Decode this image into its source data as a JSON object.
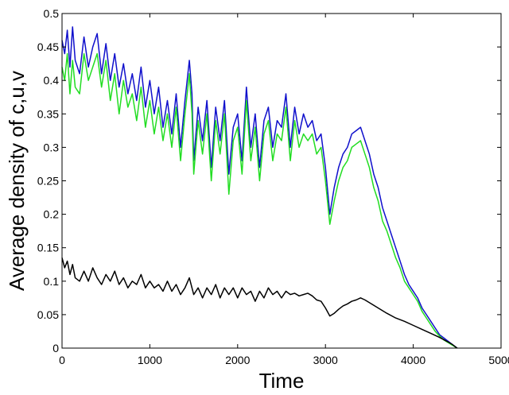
{
  "chart_data": {
    "type": "line",
    "title": "",
    "xlabel": "Time",
    "ylabel": "Average density of c,u,v",
    "xlim": [
      0,
      5000
    ],
    "ylim": [
      0,
      0.5
    ],
    "xticks": [
      0,
      1000,
      2000,
      3000,
      4000,
      5000
    ],
    "xtick_labels": [
      "0",
      "1000",
      "2000",
      "3000",
      "4000",
      "5000"
    ],
    "yticks": [
      0,
      0.05,
      0.1,
      0.15,
      0.2,
      0.25,
      0.3,
      0.35,
      0.4,
      0.45,
      0.5
    ],
    "ytick_labels": [
      "0",
      "0.05",
      "0.1",
      "0.15",
      "0.2",
      "0.25",
      "0.3",
      "0.35",
      "0.4",
      "0.45",
      "0.5"
    ],
    "grid": false,
    "legend": "none",
    "series": [
      {
        "color": "#1010cc",
        "x": [
          0,
          30,
          60,
          90,
          120,
          150,
          200,
          250,
          300,
          350,
          400,
          450,
          500,
          550,
          600,
          650,
          700,
          750,
          800,
          850,
          900,
          950,
          1000,
          1050,
          1100,
          1150,
          1200,
          1250,
          1300,
          1350,
          1400,
          1450,
          1480,
          1500,
          1550,
          1600,
          1650,
          1700,
          1750,
          1800,
          1850,
          1900,
          1950,
          2000,
          2050,
          2100,
          2150,
          2200,
          2250,
          2300,
          2350,
          2400,
          2450,
          2500,
          2550,
          2600,
          2650,
          2700,
          2750,
          2800,
          2850,
          2900,
          2950,
          3000,
          3050,
          3100,
          3150,
          3200,
          3250,
          3300,
          3350,
          3400,
          3450,
          3500,
          3550,
          3600,
          3650,
          3700,
          3750,
          3800,
          3850,
          3900,
          3950,
          4000,
          4050,
          4100,
          4150,
          4200,
          4250,
          4300,
          4350,
          4400,
          4450,
          4500
        ],
        "y": [
          0.46,
          0.44,
          0.475,
          0.42,
          0.48,
          0.43,
          0.41,
          0.465,
          0.42,
          0.45,
          0.47,
          0.41,
          0.455,
          0.4,
          0.44,
          0.39,
          0.425,
          0.38,
          0.41,
          0.37,
          0.42,
          0.36,
          0.4,
          0.35,
          0.39,
          0.33,
          0.37,
          0.32,
          0.38,
          0.3,
          0.37,
          0.43,
          0.38,
          0.28,
          0.36,
          0.31,
          0.37,
          0.27,
          0.36,
          0.31,
          0.37,
          0.26,
          0.33,
          0.35,
          0.28,
          0.39,
          0.3,
          0.35,
          0.27,
          0.34,
          0.36,
          0.3,
          0.34,
          0.33,
          0.38,
          0.3,
          0.36,
          0.32,
          0.35,
          0.33,
          0.34,
          0.31,
          0.32,
          0.27,
          0.2,
          0.24,
          0.27,
          0.29,
          0.3,
          0.32,
          0.325,
          0.33,
          0.31,
          0.29,
          0.26,
          0.24,
          0.21,
          0.19,
          0.17,
          0.15,
          0.13,
          0.11,
          0.095,
          0.085,
          0.075,
          0.06,
          0.05,
          0.04,
          0.03,
          0.02,
          0.015,
          0.01,
          0.005,
          0.0
        ]
      },
      {
        "color": "#22dd22",
        "x": [
          0,
          30,
          60,
          90,
          120,
          150,
          200,
          250,
          300,
          350,
          400,
          450,
          500,
          550,
          600,
          650,
          700,
          750,
          800,
          850,
          900,
          950,
          1000,
          1050,
          1100,
          1150,
          1200,
          1250,
          1300,
          1350,
          1400,
          1450,
          1480,
          1500,
          1550,
          1600,
          1650,
          1700,
          1750,
          1800,
          1850,
          1900,
          1950,
          2000,
          2050,
          2100,
          2150,
          2200,
          2250,
          2300,
          2350,
          2400,
          2450,
          2500,
          2550,
          2600,
          2650,
          2700,
          2750,
          2800,
          2850,
          2900,
          2950,
          3000,
          3050,
          3100,
          3150,
          3200,
          3250,
          3300,
          3350,
          3400,
          3450,
          3500,
          3550,
          3600,
          3650,
          3700,
          3750,
          3800,
          3850,
          3900,
          3950,
          4000,
          4050,
          4100,
          4150,
          4200,
          4250,
          4300,
          4350,
          4400,
          4450,
          4500
        ],
        "y": [
          0.42,
          0.4,
          0.44,
          0.38,
          0.43,
          0.39,
          0.38,
          0.44,
          0.4,
          0.42,
          0.44,
          0.39,
          0.43,
          0.37,
          0.41,
          0.35,
          0.4,
          0.36,
          0.38,
          0.34,
          0.39,
          0.33,
          0.37,
          0.32,
          0.36,
          0.31,
          0.35,
          0.3,
          0.36,
          0.28,
          0.35,
          0.41,
          0.35,
          0.26,
          0.34,
          0.29,
          0.35,
          0.25,
          0.34,
          0.29,
          0.35,
          0.23,
          0.31,
          0.33,
          0.26,
          0.37,
          0.28,
          0.33,
          0.25,
          0.32,
          0.34,
          0.28,
          0.32,
          0.31,
          0.36,
          0.28,
          0.34,
          0.3,
          0.32,
          0.31,
          0.32,
          0.29,
          0.3,
          0.25,
          0.185,
          0.22,
          0.25,
          0.27,
          0.28,
          0.3,
          0.305,
          0.31,
          0.29,
          0.27,
          0.24,
          0.22,
          0.19,
          0.175,
          0.155,
          0.135,
          0.12,
          0.1,
          0.09,
          0.08,
          0.07,
          0.055,
          0.045,
          0.035,
          0.025,
          0.018,
          0.012,
          0.008,
          0.004,
          0.0
        ]
      },
      {
        "color": "#000000",
        "x": [
          0,
          30,
          60,
          90,
          120,
          150,
          200,
          250,
          300,
          350,
          400,
          450,
          500,
          550,
          600,
          650,
          700,
          750,
          800,
          850,
          900,
          950,
          1000,
          1050,
          1100,
          1150,
          1200,
          1250,
          1300,
          1350,
          1400,
          1450,
          1500,
          1550,
          1600,
          1650,
          1700,
          1750,
          1800,
          1850,
          1900,
          1950,
          2000,
          2050,
          2100,
          2150,
          2200,
          2250,
          2300,
          2350,
          2400,
          2450,
          2500,
          2550,
          2600,
          2650,
          2700,
          2750,
          2800,
          2850,
          2900,
          2950,
          3000,
          3050,
          3100,
          3150,
          3200,
          3250,
          3300,
          3350,
          3400,
          3450,
          3500,
          3600,
          3700,
          3800,
          3900,
          4000,
          4100,
          4200,
          4300,
          4400,
          4450,
          4500
        ],
        "y": [
          0.135,
          0.12,
          0.13,
          0.11,
          0.125,
          0.105,
          0.1,
          0.115,
          0.1,
          0.12,
          0.105,
          0.095,
          0.11,
          0.1,
          0.115,
          0.095,
          0.105,
          0.09,
          0.1,
          0.095,
          0.11,
          0.09,
          0.1,
          0.09,
          0.095,
          0.085,
          0.1,
          0.085,
          0.095,
          0.08,
          0.09,
          0.105,
          0.08,
          0.09,
          0.075,
          0.09,
          0.08,
          0.095,
          0.075,
          0.09,
          0.08,
          0.09,
          0.075,
          0.09,
          0.08,
          0.085,
          0.07,
          0.085,
          0.075,
          0.09,
          0.08,
          0.085,
          0.075,
          0.085,
          0.08,
          0.082,
          0.078,
          0.08,
          0.082,
          0.078,
          0.072,
          0.07,
          0.06,
          0.048,
          0.052,
          0.058,
          0.063,
          0.066,
          0.07,
          0.072,
          0.075,
          0.072,
          0.068,
          0.06,
          0.052,
          0.045,
          0.04,
          0.034,
          0.028,
          0.022,
          0.016,
          0.009,
          0.005,
          0.0
        ]
      }
    ]
  }
}
